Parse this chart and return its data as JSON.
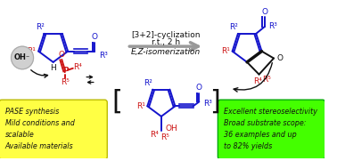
{
  "bg_color": "#ffffff",
  "arrow_top_text1": "[3+2]-cyclization",
  "arrow_top_text2": "r.t., 2 h",
  "arrow_bottom_text": "E,Z-isomerization",
  "yellow_box_text": "PASE synthesis\nMild conditions and\nscalable\nAvailable materials",
  "green_box_text": "Excellent stereoselectivity\nBroad substrate scope:\n36 examples and up\nto 82% yields",
  "yellow_box_color": "#ffff44",
  "green_box_color": "#44ff00",
  "blue_color": "#1414cc",
  "red_color": "#cc1414",
  "black_color": "#111111",
  "gray_color": "#999999"
}
